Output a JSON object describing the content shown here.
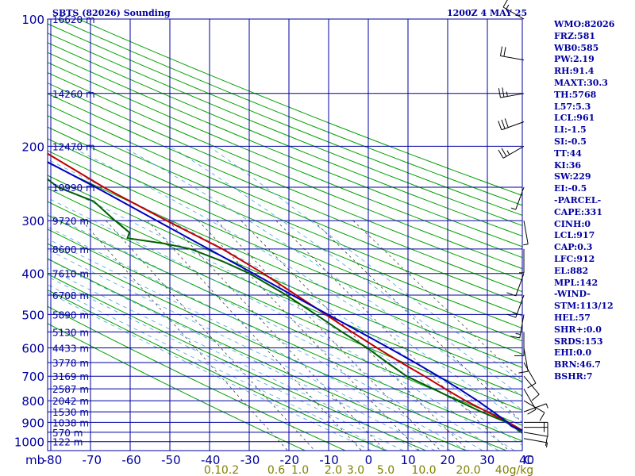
{
  "header": {
    "title": "SBTS (82026) Sounding",
    "time": "1200Z  4 MAY 25"
  },
  "stats": [
    "WMO:82026",
    "FRZ:581",
    "WB0:585",
    "PW:2.19",
    "RH:91.4",
    "MAXT:30.3",
    "TH:5768",
    "L57:5.3",
    "LCL:961",
    "LI:-1.5",
    "SI:-0.5",
    "TT:44",
    "KI:36",
    "SW:229",
    "EI:-0.5",
    "-PARCEL-",
    "CAPE:331",
    "CINH:0",
    "LCL:917",
    "CAP:0.3",
    "LFC:912",
    "EL:882",
    "MPL:142",
    "-WIND-",
    "STM:113/12",
    "HEL:57",
    "SHR+:0.0",
    "SRDS:153",
    "EHI:0.0",
    "BRN:46.7",
    "BSHR:7"
  ],
  "colors": {
    "grid": "#0000a0",
    "dry_adiabat": "#00a000",
    "temperature": "#c00000",
    "dewpoint": "#006000",
    "parcel": "#0000c0",
    "saturation_adiabat": "#4aa0e0",
    "mixing_ratio": "#404040",
    "mixing_label": "#808000"
  },
  "chart_data": {
    "type": "skew-t",
    "title": "SBTS (82026) Sounding",
    "x_label": "C",
    "y_label": "mb",
    "pressure_ticks": [
      100,
      200,
      300,
      400,
      500,
      600,
      700,
      800,
      900,
      1000
    ],
    "temp_ticks": [
      "-80",
      "-70",
      "-60",
      "-50",
      "-40",
      "-30",
      "-20",
      "-10",
      "0",
      "10",
      "20",
      "30",
      "40"
    ],
    "height_labels": [
      {
        "p": 100,
        "label": "16620 m"
      },
      {
        "p": 150,
        "label": "14260 m"
      },
      {
        "p": 200,
        "label": "12470 m"
      },
      {
        "p": 250,
        "label": "10990 m"
      },
      {
        "p": 300,
        "label": "9720 m"
      },
      {
        "p": 350,
        "label": "8600 m"
      },
      {
        "p": 400,
        "label": "7610 m"
      },
      {
        "p": 450,
        "label": "6708 m"
      },
      {
        "p": 500,
        "label": "5890 m"
      },
      {
        "p": 550,
        "label": "5130 m"
      },
      {
        "p": 600,
        "label": "4433 m"
      },
      {
        "p": 650,
        "label": "3778 m"
      },
      {
        "p": 700,
        "label": "3169 m"
      },
      {
        "p": 750,
        "label": "2587 m"
      },
      {
        "p": 800,
        "label": "2042 m"
      },
      {
        "p": 850,
        "label": "1530 m"
      },
      {
        "p": 900,
        "label": "1038 m"
      },
      {
        "p": 950,
        "label": "570 m"
      },
      {
        "p": 1000,
        "label": "122 m"
      }
    ],
    "mixing_ratio_labels": [
      "0.1",
      "0.2",
      "0.6",
      "1.0",
      "2.0",
      "3.0",
      "5.0",
      "10.0",
      "20.0",
      "40g/kg"
    ],
    "mixing_ratio_values": [
      0.1,
      0.2,
      0.6,
      1.0,
      2.0,
      3.0,
      5.0,
      10.0,
      20.0,
      40.0
    ],
    "series": [
      {
        "name": "temperature",
        "p": [
          983,
          950,
          900,
          850,
          800,
          750,
          700,
          650,
          600,
          550,
          500,
          450,
          400,
          350,
          300,
          250,
          200,
          150,
          100
        ],
        "t": [
          24.0,
          22.0,
          19.5,
          16.0,
          12.5,
          9.5,
          6.5,
          3.0,
          -0.5,
          -4.0,
          -7.5,
          -11.5,
          -16.0,
          -22.0,
          -31.0,
          -41.0,
          -51.0,
          -63.0,
          -80.0
        ]
      },
      {
        "name": "dewpoint",
        "p": [
          983,
          950,
          900,
          850,
          800,
          750,
          700,
          650,
          600,
          550,
          500,
          450,
          400,
          375,
          350,
          340,
          330,
          320,
          300,
          270,
          250,
          220,
          200,
          180,
          170,
          160,
          150,
          140,
          120,
          110,
          100
        ],
        "t": [
          22.0,
          21.0,
          19.0,
          14.5,
          10.5,
          6.5,
          2.0,
          -0.5,
          -3.0,
          -6.5,
          -10.0,
          -14.0,
          -19.5,
          -24.0,
          -30.0,
          -35.5,
          -44.0,
          -42.5,
          -44.0,
          -46.0,
          -52.5,
          -56.0,
          -61.0,
          -65.0,
          -63.0,
          -75.0,
          -77.0,
          -79.0,
          -80.0,
          -80.5,
          -80.5
        ]
      },
      {
        "name": "parcel",
        "p": [
          960,
          917,
          900,
          850,
          800,
          750,
          700,
          650,
          600,
          550,
          500,
          450,
          400,
          350,
          300,
          250,
          200,
          150,
          125
        ],
        "t": [
          23.0,
          19.5,
          19.3,
          17.5,
          15.5,
          13.0,
          10.0,
          6.5,
          2.5,
          -2.0,
          -7.0,
          -12.5,
          -18.5,
          -25.5,
          -33.5,
          -43.0,
          -55.5,
          -71.0,
          -80.0
        ]
      }
    ],
    "wind_barbs": [
      {
        "p": 983,
        "dir": 100,
        "spd": 5
      },
      {
        "p": 950,
        "dir": 100,
        "spd": 10
      },
      {
        "p": 925,
        "dir": 90,
        "spd": 15
      },
      {
        "p": 900,
        "dir": 90,
        "spd": 15
      },
      {
        "p": 850,
        "dir": 70,
        "spd": 5
      },
      {
        "p": 800,
        "dir": 120,
        "spd": 10
      },
      {
        "p": 750,
        "dir": 150,
        "spd": 10
      },
      {
        "p": 700,
        "dir": 140,
        "spd": 10
      },
      {
        "p": 650,
        "dir": 150,
        "spd": 10
      },
      {
        "p": 600,
        "dir": 170,
        "spd": 10
      },
      {
        "p": 550,
        "dir": 180,
        "spd": 10
      },
      {
        "p": 500,
        "dir": 190,
        "spd": 15
      },
      {
        "p": 450,
        "dir": 200,
        "spd": 15
      },
      {
        "p": 400,
        "dir": 200,
        "spd": 10
      },
      {
        "p": 350,
        "dir": 180,
        "spd": 5
      },
      {
        "p": 300,
        "dir": 170,
        "spd": 5
      },
      {
        "p": 250,
        "dir": 200,
        "spd": 5
      },
      {
        "p": 200,
        "dir": 240,
        "spd": 25
      },
      {
        "p": 175,
        "dir": 250,
        "spd": 30
      },
      {
        "p": 150,
        "dir": 260,
        "spd": 25
      },
      {
        "p": 125,
        "dir": 280,
        "spd": 20
      },
      {
        "p": 100,
        "dir": 300,
        "spd": 15
      }
    ]
  }
}
